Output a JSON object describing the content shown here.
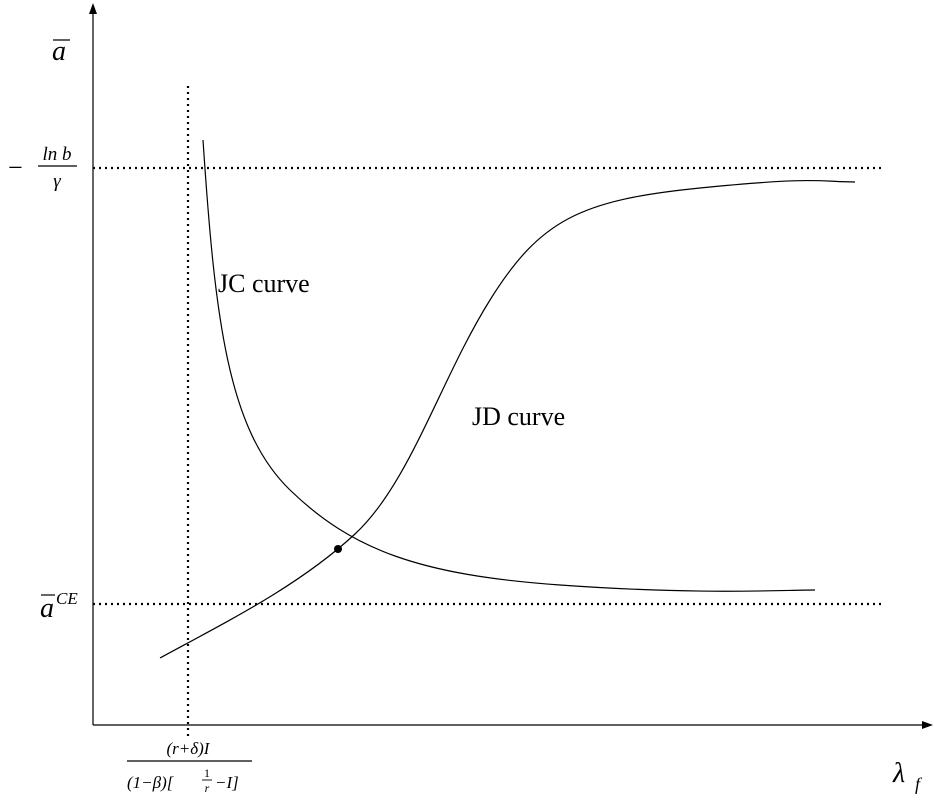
{
  "y_axis": {
    "label": "a"
  },
  "x_axis": {
    "label": "λ",
    "label_sub": "f"
  },
  "upper_line": {
    "label": {
      "sign": "−",
      "numerator": "ln b",
      "denominator": "γ"
    }
  },
  "lower_line": {
    "label": {
      "base": "a",
      "sup": "CE"
    }
  },
  "vertical_line": {
    "label": {
      "numerator": "(r+δ)I",
      "denominator_left": "(1−β)[",
      "denominator_frac_num": "1",
      "denominator_frac_den": "r",
      "denominator_right": "−I]"
    }
  },
  "curves": [
    {
      "label": "JC curve"
    },
    {
      "label": "JD curve"
    }
  ]
}
